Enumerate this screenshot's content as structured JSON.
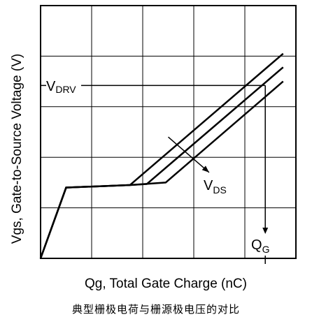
{
  "chart_data": {
    "type": "line",
    "title": "",
    "xlabel": "Qg, Total Gate Charge (nC)",
    "ylabel": "Vgs, Gate-to-Source Voltage (V)",
    "caption": "典型栅极电荷与栅源极电压的对比",
    "xlim": [
      0,
      5
    ],
    "ylim": [
      0,
      5
    ],
    "grid": true,
    "annotations": {
      "vdrv_main": "V",
      "vdrv_sub": "DRV",
      "vds_main": "V",
      "vds_sub": "DS",
      "qg_main": "Q",
      "qg_sub": "G"
    },
    "series": [
      {
        "x": [
          0,
          0.5,
          1.75,
          4.75
        ],
        "y": [
          0,
          1.4,
          1.45,
          4.05
        ]
      },
      {
        "x": [
          0,
          0.5,
          1.75,
          2.08,
          4.75
        ],
        "y": [
          0,
          1.4,
          1.45,
          1.47,
          3.78
        ]
      },
      {
        "x": [
          0,
          0.5,
          1.75,
          2.45,
          4.75
        ],
        "y": [
          0,
          1.4,
          1.45,
          1.5,
          3.5
        ]
      }
    ],
    "vdrv_level": 3.42,
    "qg_value": 4.4,
    "vds_arrow": {
      "from": [
        2.5,
        2.4
      ],
      "to": [
        3.3,
        1.7
      ]
    }
  }
}
